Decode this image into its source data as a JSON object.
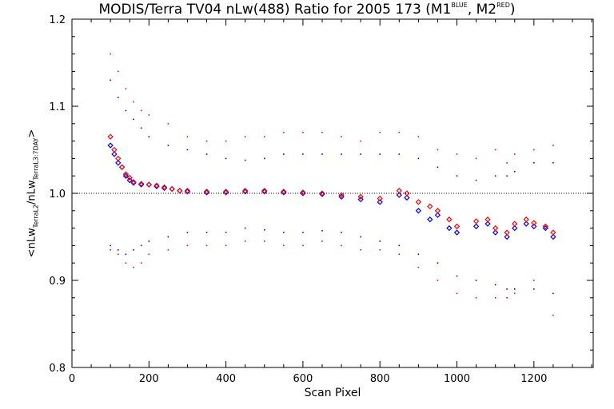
{
  "chart_data": {
    "type": "scatter",
    "title_parts": {
      "main": "MODIS/Terra TV04 nLw(488) Ratio for 2005 173 (M1",
      "sup1": "BLUE",
      "mid": ", M2",
      "sup2": "RED",
      "end": ")"
    },
    "xlabel": "Scan Pixel",
    "ylabel_parts": {
      "a": "<nLw",
      "sub1": "TerraL2",
      "b": "/nLw",
      "sub2": "TerraL3:7DAY",
      "c": ">"
    },
    "xlim": [
      0,
      1354
    ],
    "ylim": [
      0.8,
      1.2
    ],
    "x_ticks": [
      0,
      200,
      400,
      600,
      800,
      1000,
      1200
    ],
    "y_ticks": [
      0.8,
      0.9,
      1.0,
      1.1,
      1.2
    ],
    "reference_line": 1.0,
    "colors": {
      "M1": "#0000ff",
      "M2": "#ff0000",
      "reference": "#000000"
    },
    "series": [
      {
        "name": "M1",
        "role": "mean",
        "x": [
          100,
          110,
          120,
          130,
          140,
          150,
          160,
          180,
          200,
          220,
          240,
          260,
          280,
          300,
          350,
          400,
          450,
          500,
          550,
          600,
          650,
          700,
          750,
          800,
          850,
          870,
          900,
          930,
          950,
          980,
          1000,
          1050,
          1080,
          1100,
          1130,
          1150,
          1180,
          1200,
          1230,
          1250
        ],
        "y": [
          1.055,
          1.045,
          1.035,
          1.03,
          1.02,
          1.015,
          1.012,
          1.01,
          1.01,
          1.008,
          1.006,
          1.005,
          1.003,
          1.002,
          1.001,
          1.001,
          1.002,
          1.002,
          1.001,
          1.0,
          0.999,
          0.996,
          0.993,
          0.99,
          0.998,
          0.995,
          0.98,
          0.97,
          0.975,
          0.96,
          0.955,
          0.962,
          0.965,
          0.955,
          0.95,
          0.96,
          0.965,
          0.962,
          0.96,
          0.95
        ]
      },
      {
        "name": "M2",
        "role": "mean",
        "x": [
          100,
          110,
          120,
          130,
          140,
          150,
          160,
          180,
          200,
          220,
          240,
          260,
          280,
          300,
          350,
          400,
          450,
          500,
          550,
          600,
          650,
          700,
          750,
          800,
          850,
          870,
          900,
          930,
          950,
          980,
          1000,
          1050,
          1080,
          1100,
          1130,
          1150,
          1180,
          1200,
          1230,
          1250
        ],
        "y": [
          1.065,
          1.05,
          1.04,
          1.03,
          1.022,
          1.018,
          1.013,
          1.011,
          1.01,
          1.009,
          1.007,
          1.005,
          1.003,
          1.003,
          1.002,
          1.002,
          1.003,
          1.003,
          1.002,
          1.001,
          1.0,
          0.998,
          0.996,
          0.994,
          1.003,
          1.0,
          0.99,
          0.985,
          0.98,
          0.97,
          0.962,
          0.968,
          0.97,
          0.96,
          0.955,
          0.965,
          0.97,
          0.966,
          0.962,
          0.955
        ]
      },
      {
        "name": "M1",
        "role": "upper-bound",
        "x": [
          100,
          120,
          140,
          160,
          180,
          200,
          250,
          300,
          350,
          400,
          450,
          500,
          550,
          600,
          650,
          700,
          750,
          800,
          850,
          900,
          950,
          1000,
          1050,
          1100,
          1130,
          1150,
          1200,
          1250
        ],
        "y": [
          1.13,
          1.11,
          1.095,
          1.085,
          1.075,
          1.065,
          1.055,
          1.05,
          1.045,
          1.04,
          1.038,
          1.04,
          1.045,
          1.045,
          1.045,
          1.045,
          1.045,
          1.045,
          1.045,
          1.04,
          1.03,
          1.02,
          1.015,
          1.02,
          1.02,
          1.025,
          1.035,
          1.035
        ]
      },
      {
        "name": "M2",
        "role": "upper-bound",
        "x": [
          100,
          120,
          140,
          160,
          180,
          200,
          250,
          300,
          350,
          400,
          450,
          500,
          550,
          600,
          650,
          700,
          750,
          800,
          850,
          900,
          950,
          1000,
          1050,
          1100,
          1130,
          1150,
          1200,
          1250
        ],
        "y": [
          1.16,
          1.14,
          1.12,
          1.105,
          1.095,
          1.09,
          1.08,
          1.065,
          1.06,
          1.06,
          1.065,
          1.065,
          1.07,
          1.07,
          1.07,
          1.065,
          1.06,
          1.07,
          1.07,
          1.065,
          1.05,
          1.045,
          1.04,
          1.05,
          1.035,
          1.045,
          1.05,
          1.055
        ]
      },
      {
        "name": "M1",
        "role": "lower-bound",
        "x": [
          100,
          120,
          140,
          160,
          180,
          200,
          250,
          300,
          350,
          400,
          450,
          500,
          550,
          600,
          650,
          700,
          750,
          800,
          850,
          900,
          950,
          1000,
          1050,
          1100,
          1130,
          1150,
          1200,
          1250
        ],
        "y": [
          0.94,
          0.935,
          0.93,
          0.935,
          0.94,
          0.945,
          0.95,
          0.955,
          0.955,
          0.955,
          0.96,
          0.958,
          0.955,
          0.955,
          0.957,
          0.955,
          0.95,
          0.945,
          0.94,
          0.93,
          0.92,
          0.905,
          0.9,
          0.895,
          0.89,
          0.89,
          0.89,
          0.885
        ]
      },
      {
        "name": "M2",
        "role": "lower-bound",
        "x": [
          100,
          120,
          140,
          160,
          180,
          200,
          250,
          300,
          350,
          400,
          450,
          500,
          550,
          600,
          650,
          700,
          750,
          800,
          850,
          900,
          950,
          1000,
          1050,
          1100,
          1130,
          1150,
          1200,
          1250
        ],
        "y": [
          0.935,
          0.93,
          0.92,
          0.915,
          0.92,
          0.93,
          0.935,
          0.94,
          0.94,
          0.94,
          0.945,
          0.945,
          0.94,
          0.94,
          0.945,
          0.94,
          0.935,
          0.935,
          0.93,
          0.915,
          0.9,
          0.885,
          0.88,
          0.88,
          0.88,
          0.885,
          0.9,
          0.86
        ]
      }
    ]
  }
}
